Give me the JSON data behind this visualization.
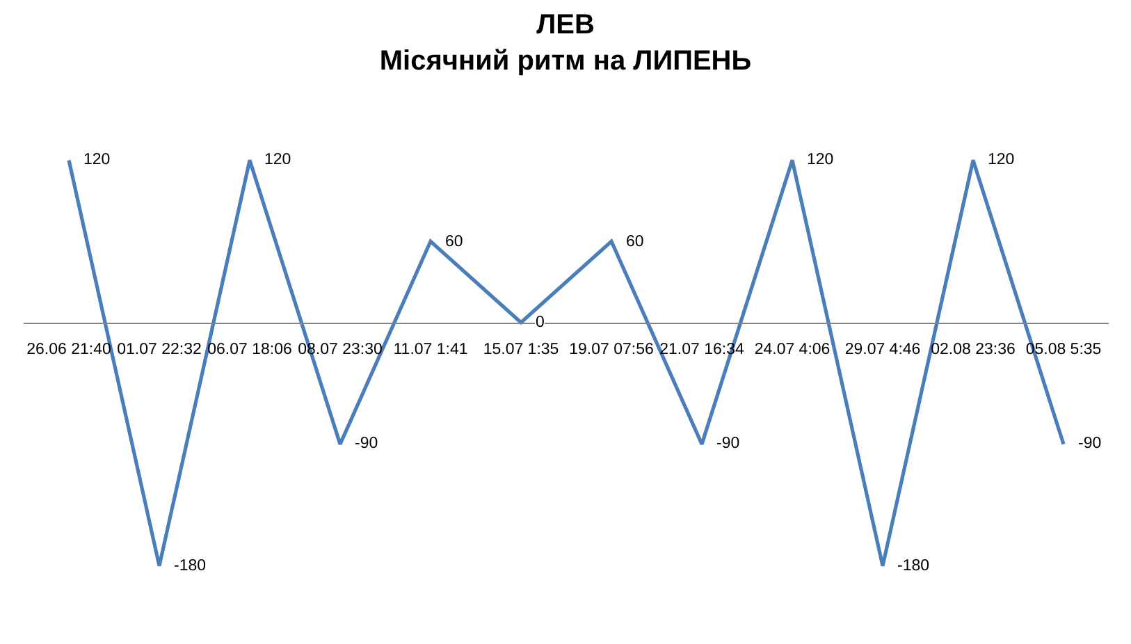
{
  "chart_data": {
    "type": "line",
    "title": "ЛЕВ\nМісячний ритм на ЛИПЕНЬ",
    "categories": [
      "26.06 21:40",
      "01.07 22:32",
      "06.07 18:06",
      "08.07 23:30",
      "11.07 1:41",
      "15.07 1:35",
      "19.07 07:56",
      "21.07 16:34",
      "24.07 4:06",
      "29.07 4:46",
      "02.08 23:36",
      "05.08 5:35"
    ],
    "values": [
      120,
      -180,
      120,
      -90,
      60,
      0,
      60,
      -90,
      120,
      -180,
      120,
      -90
    ],
    "color": "#4a7ebb",
    "data_labels": true,
    "tick_labels": "x",
    "line_style": "solid"
  }
}
